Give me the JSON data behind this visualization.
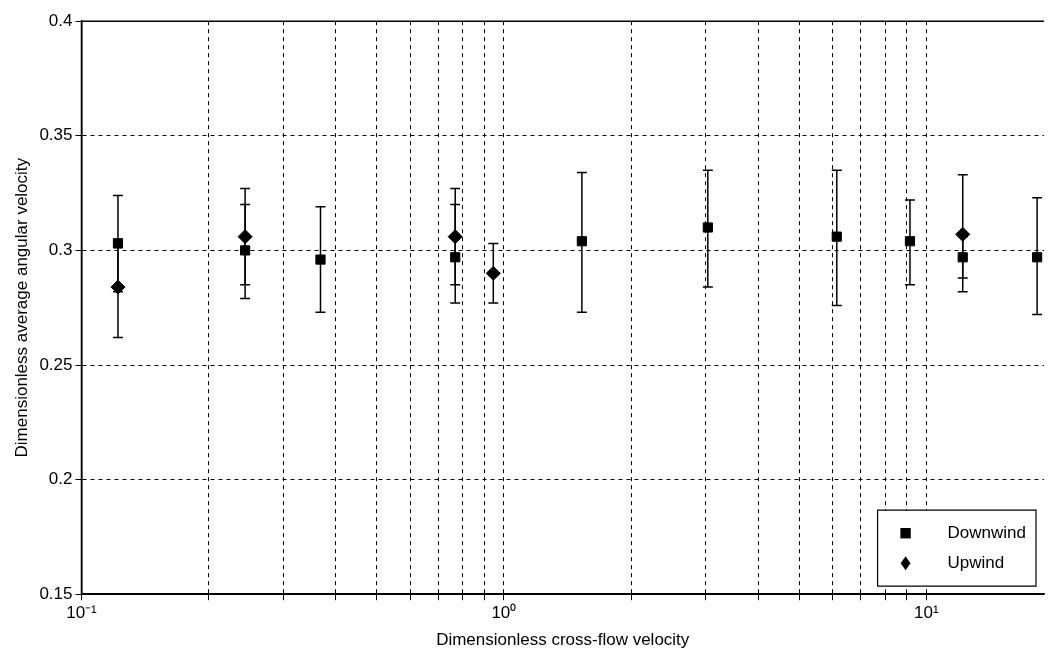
{
  "chart_data": {
    "type": "scatter",
    "xlabel": "Dimensionless cross-flow velocity",
    "ylabel": "Dimensionless average angular velocity",
    "log": "x",
    "xlim": [
      0.1,
      19
    ],
    "ylim": [
      0.15,
      0.4
    ],
    "xticks": [
      {
        "value": 0.1,
        "label": "10⁻¹"
      },
      {
        "value": 0.2,
        "label": null
      },
      {
        "value": 0.3,
        "label": null
      },
      {
        "value": 0.4,
        "label": null
      },
      {
        "value": 0.5,
        "label": null
      },
      {
        "value": 0.6,
        "label": null
      },
      {
        "value": 0.7,
        "label": null
      },
      {
        "value": 0.8,
        "label": null
      },
      {
        "value": 0.9,
        "label": null
      },
      {
        "value": 1,
        "label": "10⁰"
      },
      {
        "value": 2,
        "label": null
      },
      {
        "value": 3,
        "label": null
      },
      {
        "value": 4,
        "label": null
      },
      {
        "value": 5,
        "label": null
      },
      {
        "value": 6,
        "label": null
      },
      {
        "value": 7,
        "label": null
      },
      {
        "value": 8,
        "label": null
      },
      {
        "value": 9,
        "label": null
      },
      {
        "value": 10,
        "label": "10¹"
      }
    ],
    "yticks": [
      0.15,
      0.2,
      0.25,
      0.3,
      0.35,
      0.4
    ],
    "grid": true,
    "legend": "bottom right",
    "series": [
      {
        "name": "Downwind",
        "color": "#000000",
        "marker": "square",
        "x": [
          0.122,
          0.244,
          0.368,
          0.767,
          1.53,
          3.04,
          6.14,
          9.15,
          12.2,
          18.3
        ],
        "values": [
          0.303,
          0.3,
          0.296,
          0.297,
          0.304,
          0.31,
          0.306,
          0.304,
          0.297,
          0.297
        ],
        "errors": [
          [
            0.282,
            0.324
          ],
          [
            0.279,
            0.327
          ],
          [
            0.273,
            0.319
          ],
          [
            0.277,
            0.32
          ],
          [
            0.273,
            0.334
          ],
          [
            0.284,
            0.335
          ],
          [
            0.276,
            0.335
          ],
          [
            0.285,
            0.322
          ],
          [
            0.288,
            0.306
          ],
          [
            0.272,
            0.323
          ]
        ]
      },
      {
        "name": "Upwind",
        "color": "#000000",
        "marker": "diamond",
        "x": [
          0.122,
          0.244,
          0.767,
          0.944,
          12.2
        ],
        "values": [
          0.284,
          0.306,
          0.306,
          0.29,
          0.307
        ],
        "errors": [
          [
            0.262,
            0.305
          ],
          [
            0.285,
            0.32
          ],
          [
            0.285,
            0.327
          ],
          [
            0.277,
            0.303
          ],
          [
            0.282,
            0.333
          ]
        ]
      }
    ]
  }
}
